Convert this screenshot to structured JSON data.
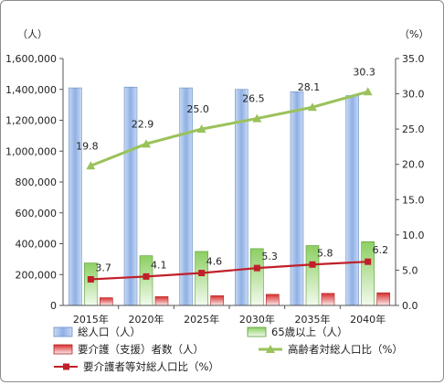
{
  "chart_data": {
    "type": "bar",
    "categories": [
      "2015年",
      "2020年",
      "2025年",
      "2030年",
      "2035年",
      "2040年"
    ],
    "y_left": {
      "unit": "（人）",
      "ylim": [
        0,
        1600000
      ],
      "ticks": [
        "0",
        "200,000",
        "400,000",
        "600,000",
        "800,000",
        "1,000,000",
        "1,200,000",
        "1,400,000",
        "1,600,000"
      ]
    },
    "y_right": {
      "unit": "（%）",
      "ylim": [
        0,
        35
      ],
      "ticks": [
        "0.0",
        "5.0",
        "10.0",
        "15.0",
        "20.0",
        "25.0",
        "30.0",
        "35.0"
      ]
    },
    "series": [
      {
        "name": "総人口（人）",
        "kind": "bar",
        "axis": "left",
        "color": "#9bb9e8",
        "values": [
          1410000,
          1415000,
          1410000,
          1400000,
          1385000,
          1360000
        ]
      },
      {
        "name": "65歳以上（人）",
        "kind": "bar",
        "axis": "left",
        "color": "#9bd07a",
        "values": [
          275000,
          322000,
          350000,
          368000,
          388000,
          413000
        ]
      },
      {
        "name": "要介護（支援）者数（人）",
        "kind": "bar",
        "axis": "left",
        "color": "#e84040",
        "values": [
          50000,
          57000,
          63000,
          72000,
          78000,
          82000
        ]
      },
      {
        "name": "高齢者対総人口比（%）",
        "kind": "line",
        "axis": "right",
        "color": "#9ac25a",
        "values": [
          19.8,
          22.9,
          25.0,
          26.5,
          28.1,
          30.3
        ],
        "labels": [
          "19.8",
          "22.9",
          "25.0",
          "26.5",
          "28.1",
          "30.3"
        ]
      },
      {
        "name": "要介護者等対総人口比（%）",
        "kind": "line",
        "axis": "right",
        "color": "#c0202a",
        "values": [
          3.7,
          4.1,
          4.6,
          5.3,
          5.8,
          6.2
        ],
        "labels": [
          "3.7",
          "4.1",
          "4.6",
          "5.3",
          "5.8",
          "6.2"
        ]
      }
    ],
    "grid": false,
    "legend_position": "bottom"
  }
}
